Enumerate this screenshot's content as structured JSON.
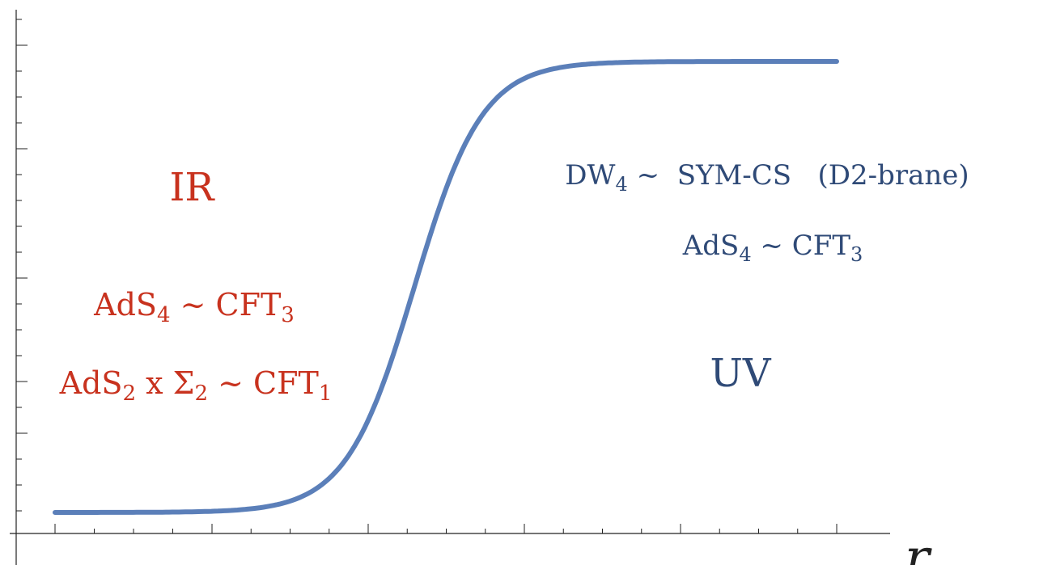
{
  "colors": {
    "curve": "#5b7fb9",
    "ir": "#c8321e",
    "uv": "#2f4a77",
    "axis": "#222222"
  },
  "axis": {
    "x_label": "r"
  },
  "ir_region": {
    "title": "IR",
    "line1": {
      "main": "AdS",
      "sub": "4",
      "rest": " ~ CFT",
      "sub2": "3"
    },
    "line2": {
      "a": "AdS",
      "a_sub": "2",
      "b": " x Σ",
      "b_sub": "2",
      "c": " ~ CFT",
      "c_sub": "1"
    }
  },
  "uv_region": {
    "title": "UV",
    "line1": {
      "a": "DW",
      "a_sub": "4",
      "b": " ~  SYM-CS   (D2-brane)"
    },
    "line2": {
      "a": "AdS",
      "a_sub": "4",
      "b": " ~ CFT",
      "b_sub": "3"
    }
  }
}
